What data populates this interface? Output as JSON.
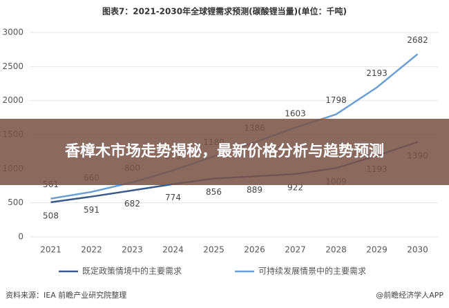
{
  "chart_data": {
    "type": "line",
    "title": "图表7：2021-2030年全球锂需求预测(碳酸锂当量)(单位：千吨)",
    "categories": [
      "2021",
      "2022",
      "2023",
      "2024",
      "2025",
      "2026",
      "2027",
      "2028",
      "2029",
      "2030"
    ],
    "series": [
      {
        "name": "既定政策情境中的主要需求",
        "color": "#3a5a8c",
        "values": [
          508,
          591,
          682,
          774,
          856,
          889,
          922,
          1009,
          1193,
          1390
        ]
      },
      {
        "name": "可持续发展情景中的主要需求",
        "color": "#6a9fd4",
        "values": [
          561,
          660,
          800,
          975,
          1180,
          1386,
          1603,
          1798,
          2193,
          2682
        ]
      }
    ],
    "ylim": [
      0,
      3000
    ],
    "yticks": [
      0,
      500,
      1000,
      1500,
      2000,
      2500,
      3000
    ],
    "grid": true,
    "source": "资料来源：IEA 前瞻产业研究院整理",
    "watermark": "@前瞻经济学人APP"
  },
  "banner": "香樟木市场走势揭秘，最新价格分析与趋势预测"
}
